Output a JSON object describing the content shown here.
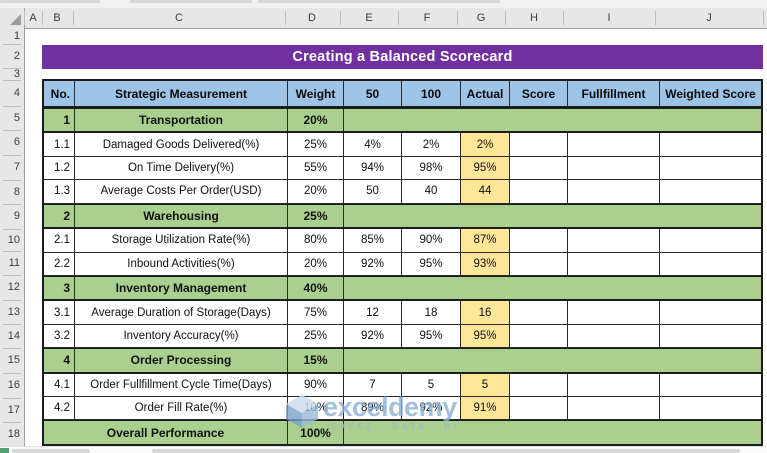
{
  "title_bar": {
    "text": "Creating a Balanced Scorecard"
  },
  "grid": {
    "column_labels": [
      "A",
      "B",
      "C",
      "D",
      "E",
      "F",
      "G",
      "H",
      "I",
      "J"
    ],
    "row_labels": [
      "1",
      "2",
      "3",
      "4",
      "5",
      "6",
      "7",
      "8",
      "9",
      "10",
      "11",
      "12",
      "13",
      "14",
      "15",
      "16",
      "17",
      "18"
    ]
  },
  "table": {
    "headers": [
      "No.",
      "Strategic Measurement",
      "Weight",
      "50",
      "100",
      "Actual",
      "Score",
      "Fullfillment",
      "Weighted Score"
    ],
    "rows": [
      {
        "style": "category",
        "no": "1",
        "name": "Transportation",
        "weight": "20%",
        "v50": "",
        "v100": "",
        "actual": ""
      },
      {
        "style": "data",
        "no": "1.1",
        "name": "Damaged Goods Delivered(%)",
        "weight": "25%",
        "v50": "4%",
        "v100": "2%",
        "actual": "2%"
      },
      {
        "style": "data",
        "no": "1.2",
        "name": "On Time Delivery(%)",
        "weight": "55%",
        "v50": "94%",
        "v100": "98%",
        "actual": "95%"
      },
      {
        "style": "data",
        "no": "1.3",
        "name": "Average Costs Per Order(USD)",
        "weight": "20%",
        "v50": "50",
        "v100": "40",
        "actual": "44"
      },
      {
        "style": "category",
        "no": "2",
        "name": "Warehousing",
        "weight": "25%",
        "v50": "",
        "v100": "",
        "actual": ""
      },
      {
        "style": "data",
        "no": "2.1",
        "name": "Storage Utilization Rate(%)",
        "weight": "80%",
        "v50": "85%",
        "v100": "90%",
        "actual": "87%"
      },
      {
        "style": "data",
        "no": "2.2",
        "name": "Inbound Activities(%)",
        "weight": "20%",
        "v50": "92%",
        "v100": "95%",
        "actual": "93%"
      },
      {
        "style": "category",
        "no": "3",
        "name": "Inventory Management",
        "weight": "40%",
        "v50": "",
        "v100": "",
        "actual": ""
      },
      {
        "style": "data",
        "no": "3.1",
        "name": "Average Duration of Storage(Days)",
        "weight": "75%",
        "v50": "12",
        "v100": "18",
        "actual": "16"
      },
      {
        "style": "data",
        "no": "3.2",
        "name": "Inventory Accuracy(%)",
        "weight": "25%",
        "v50": "92%",
        "v100": "95%",
        "actual": "95%"
      },
      {
        "style": "category",
        "no": "4",
        "name": "Order Processing",
        "weight": "15%",
        "v50": "",
        "v100": "",
        "actual": ""
      },
      {
        "style": "data",
        "no": "4.1",
        "name": "Order Fullfillment Cycle Time(Days)",
        "weight": "90%",
        "v50": "7",
        "v100": "5",
        "actual": "5"
      },
      {
        "style": "data",
        "no": "4.2",
        "name": "Order Fill Rate(%)",
        "weight": "10%",
        "v50": "89%",
        "v100": "92%",
        "actual": "91%"
      },
      {
        "style": "overall",
        "no": "",
        "name": "Overall Performance",
        "weight": "100%",
        "v50": "",
        "v100": "",
        "actual": ""
      }
    ]
  },
  "watermark": {
    "brand": "exceldemy",
    "tagline": "EXCEL - DATA - BI"
  },
  "colors": {
    "title_bg": "#7030A0",
    "header_bg": "#9DC3E6",
    "category_bg": "#A9D08E",
    "actual_bg": "#FFE699"
  }
}
